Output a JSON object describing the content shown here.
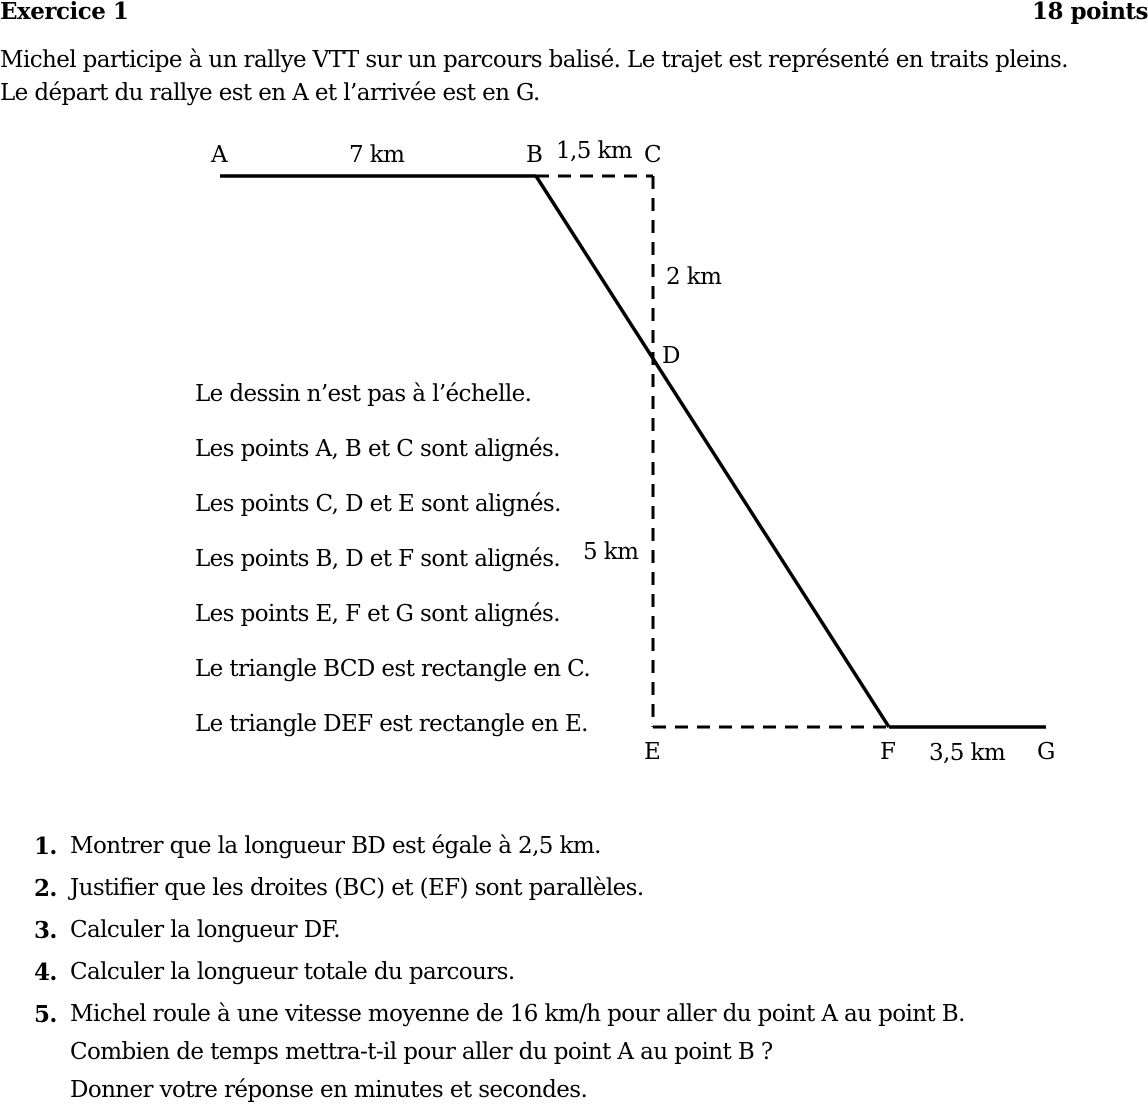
{
  "header": {
    "title": "Exercice 1",
    "points": "18 points"
  },
  "intro": [
    "Michel participe à un rallye VTT sur un parcours balisé. Le trajet est représenté en traits pleins.",
    "Le départ du rallye est en A et l’arrivée est en G."
  ],
  "figure": {
    "points": {
      "A": "A",
      "B": "B",
      "C": "C",
      "D": "D",
      "E": "E",
      "F": "F",
      "G": "G"
    },
    "lengths": {
      "AB": "7 km",
      "BC": "1,5 km",
      "CD": "2 km",
      "DE": "5 km",
      "FG": "3,5 km"
    }
  },
  "notes": [
    "Le dessin n’est pas à l’échelle.",
    "Les points A, B et C sont alignés.",
    "Les points C, D et E sont alignés.",
    "Les points B, D et F sont alignés.",
    "Les points E, F et G sont alignés.",
    "Le triangle BCD est rectangle en C.",
    "Le triangle DEF est rectangle en E."
  ],
  "questions": [
    {
      "num": "1.",
      "lines": [
        "Montrer que la longueur BD est égale à 2,5 km."
      ]
    },
    {
      "num": "2.",
      "lines": [
        "Justifier que les droites (BC) et (EF) sont parallèles."
      ]
    },
    {
      "num": "3.",
      "lines": [
        "Calculer la longueur DF."
      ]
    },
    {
      "num": "4.",
      "lines": [
        "Calculer la longueur totale du parcours."
      ]
    },
    {
      "num": "5.",
      "lines": [
        "Michel roule à une vitesse moyenne de 16 km/h pour aller du point A au point B.",
        "Combien de temps mettra-t-il pour aller du point A au point B ?",
        "Donner votre réponse en minutes et secondes."
      ]
    }
  ]
}
